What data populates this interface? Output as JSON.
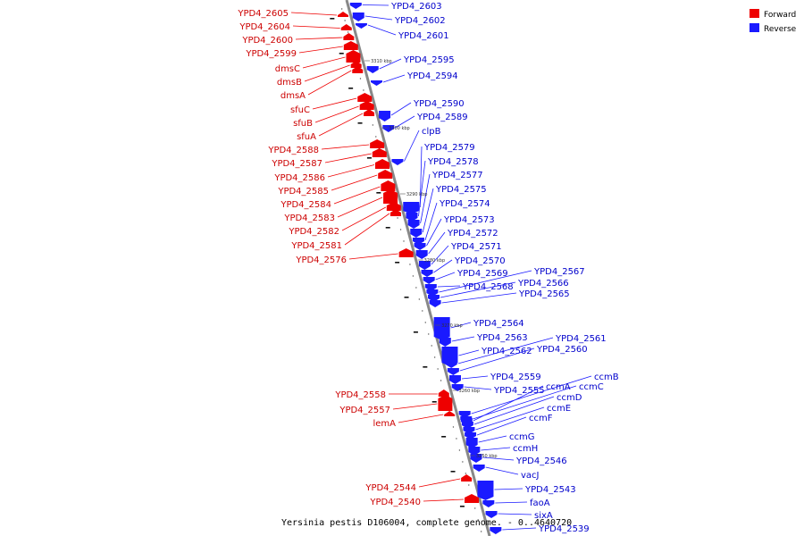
{
  "colors": {
    "forward": "#ee0000",
    "reverse": "#1a1aff",
    "axis": "#888888"
  },
  "legend": {
    "forward_label": "Forward",
    "reverse_label": "Reverse"
  },
  "caption": "Yersinia pestis D106004, complete genome. - 0..4640720",
  "ticks": [
    "3310 kbp",
    "3300 kbp",
    "3290 kbp",
    "3280 kbp",
    "3270 kbp",
    "3260 kbp",
    "3250 kbp"
  ],
  "forward_genes": [
    "YPD4_2605",
    "YPD4_2604",
    "YPD4_2600",
    "YPD4_2599",
    "dmsC",
    "dmsB",
    "dmsA",
    "sfuC",
    "sfuB",
    "sfuA",
    "YPD4_2588",
    "YPD4_2587",
    "YPD4_2586",
    "YPD4_2585",
    "YPD4_2584",
    "YPD4_2583",
    "YPD4_2582",
    "YPD4_2581",
    "YPD4_2576",
    "YPD4_2558",
    "YPD4_2557",
    "lemA",
    "YPD4_2544",
    "YPD4_2540"
  ],
  "reverse_genes": [
    "YPD4_2603",
    "YPD4_2602",
    "YPD4_2601",
    "YPD4_2595",
    "YPD4_2594",
    "YPD4_2590",
    "YPD4_2589",
    "clpB",
    "YPD4_2579",
    "YPD4_2578",
    "YPD4_2577",
    "YPD4_2575",
    "YPD4_2574",
    "YPD4_2573",
    "YPD4_2572",
    "YPD4_2571",
    "YPD4_2570",
    "YPD4_2569",
    "YPD4_2568",
    "YPD4_2567",
    "YPD4_2566",
    "YPD4_2565",
    "YPD4_2564",
    "YPD4_2563",
    "YPD4_2562",
    "YPD4_2561",
    "YPD4_2560",
    "YPD4_2559",
    "YPD4_2555",
    "ccmB",
    "ccmC",
    "ccmA",
    "ccmD",
    "ccmE",
    "ccmF",
    "ccmG",
    "ccmH",
    "YPD4_2546",
    "vacJ",
    "YPD4_2543",
    "faoA",
    "sixA",
    "YPD4_2539"
  ]
}
